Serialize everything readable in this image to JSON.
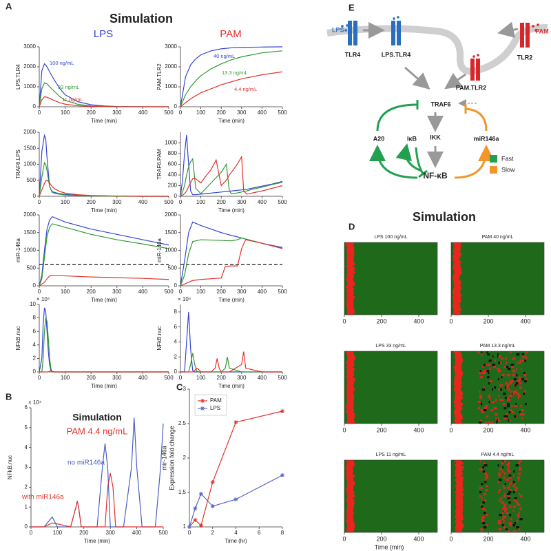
{
  "panel_labels": [
    "A",
    "B",
    "C",
    "D",
    "E"
  ],
  "panel_a": {
    "title": "Simulation",
    "columns": [
      "LPS",
      "PAM"
    ]
  },
  "chart_data": [
    {
      "type": "line",
      "ylabel": "LPS.TLR4",
      "xlabel": "Time (min)",
      "xlim": [
        0,
        500
      ],
      "xticks": [
        0,
        100,
        200,
        300,
        400,
        500
      ],
      "ylim": [
        0,
        3000
      ],
      "yticks": [
        0,
        1000,
        2000,
        3000
      ],
      "x": [
        0,
        10,
        20,
        30,
        40,
        60,
        80,
        100,
        150,
        200,
        250,
        300,
        400,
        500
      ],
      "series": [
        {
          "name": "100 ng/mL",
          "color": "#3344d6",
          "values": [
            0,
            1800,
            2150,
            2000,
            1750,
            1300,
            900,
            600,
            250,
            100,
            40,
            15,
            0,
            0
          ]
        },
        {
          "name": "33 ng/mL",
          "color": "#2f9a2f",
          "values": [
            0,
            900,
            1200,
            1150,
            1000,
            750,
            500,
            320,
            120,
            40,
            15,
            5,
            0,
            0
          ]
        },
        {
          "name": "11 ng/mL",
          "color": "#e2312b",
          "values": [
            0,
            350,
            500,
            480,
            420,
            300,
            200,
            130,
            50,
            20,
            5,
            0,
            0,
            0
          ]
        }
      ]
    },
    {
      "type": "line",
      "ylabel": "PAM.TLR2",
      "xlabel": "Time (min)",
      "xlim": [
        0,
        500
      ],
      "xticks": [
        0,
        100,
        200,
        300,
        400,
        500
      ],
      "ylim": [
        0,
        3000
      ],
      "yticks": [
        0,
        1000,
        2000,
        3000
      ],
      "x": [
        0,
        25,
        50,
        75,
        100,
        150,
        200,
        250,
        300,
        400,
        500
      ],
      "series": [
        {
          "name": "40 ng/mL",
          "color": "#3344d6",
          "values": [
            0,
            1500,
            2100,
            2400,
            2600,
            2800,
            2900,
            2950,
            2970,
            2990,
            3000
          ]
        },
        {
          "name": "13.3 ng/mL",
          "color": "#2f9a2f",
          "values": [
            0,
            600,
            1000,
            1300,
            1550,
            1900,
            2150,
            2350,
            2500,
            2700,
            2800
          ]
        },
        {
          "name": "4.4 ng/mL",
          "color": "#e2312b",
          "values": [
            0,
            200,
            400,
            550,
            700,
            900,
            1100,
            1250,
            1400,
            1600,
            1750
          ]
        }
      ]
    },
    {
      "type": "line",
      "ylabel": "TRAF6.LPS",
      "xlabel": "Time (min)",
      "xlim": [
        0,
        500
      ],
      "xticks": [
        0,
        100,
        200,
        300,
        400,
        500
      ],
      "ylim": [
        0,
        2000
      ],
      "yticks": [
        0,
        500,
        1000,
        1500,
        2000
      ],
      "x": [
        0,
        10,
        20,
        25,
        30,
        40,
        50,
        60,
        80,
        100,
        150,
        200,
        300,
        400,
        500
      ],
      "series": [
        {
          "color": "#3344d6",
          "values": [
            0,
            1400,
            1900,
            1800,
            1200,
            300,
            150,
            120,
            80,
            60,
            30,
            15,
            5,
            0,
            0
          ]
        },
        {
          "color": "#2f9a2f",
          "values": [
            0,
            600,
            1050,
            1000,
            800,
            300,
            120,
            90,
            60,
            40,
            20,
            10,
            0,
            0,
            0
          ]
        },
        {
          "color": "#e2312b",
          "values": [
            0,
            200,
            400,
            480,
            500,
            420,
            300,
            230,
            150,
            100,
            50,
            25,
            10,
            0,
            0
          ]
        }
      ]
    },
    {
      "type": "line",
      "ylabel": "TRAF6.PAM",
      "xlabel": "Time (min)",
      "xlim": [
        0,
        500
      ],
      "xticks": [
        0,
        100,
        200,
        300,
        400,
        500
      ],
      "ylim": [
        0,
        1200
      ],
      "yticks": [
        0,
        200,
        400,
        600,
        800,
        1000
      ],
      "x": [
        0,
        10,
        20,
        30,
        40,
        50,
        60,
        75,
        100,
        125,
        150,
        175,
        200,
        225,
        240,
        250,
        275,
        300,
        310,
        325,
        350,
        400,
        450,
        500
      ],
      "series": [
        {
          "color": "#3344d6",
          "values": [
            0,
            300,
            800,
            1150,
            600,
            100,
            30,
            30,
            40,
            50,
            60,
            70,
            80,
            90,
            95,
            100,
            110,
            120,
            125,
            130,
            150,
            190,
            230,
            280
          ]
        },
        {
          "color": "#2f9a2f",
          "values": [
            0,
            80,
            200,
            400,
            550,
            650,
            700,
            150,
            50,
            150,
            250,
            350,
            450,
            600,
            100,
            50,
            60,
            80,
            90,
            100,
            130,
            170,
            220,
            260
          ]
        },
        {
          "color": "#e2312b",
          "values": [
            0,
            20,
            50,
            100,
            180,
            260,
            330,
            330,
            250,
            380,
            500,
            680,
            200,
            300,
            400,
            450,
            580,
            740,
            100,
            40,
            60,
            100,
            150,
            200
          ]
        }
      ]
    },
    {
      "type": "line",
      "ylabel": "miR-146a",
      "xlabel": "Time (min)",
      "xlim": [
        0,
        500
      ],
      "xticks": [
        0,
        100,
        200,
        300,
        400,
        500
      ],
      "ylim": [
        0,
        2000
      ],
      "yticks": [
        0,
        500,
        1000,
        1500,
        2000
      ],
      "threshold": 600,
      "x": [
        0,
        10,
        20,
        30,
        40,
        50,
        100,
        200,
        300,
        400,
        500
      ],
      "series": [
        {
          "color": "#3344d6",
          "values": [
            0,
            300,
            1000,
            1600,
            1850,
            1950,
            1800,
            1600,
            1450,
            1300,
            1150
          ]
        },
        {
          "color": "#2f9a2f",
          "values": [
            0,
            200,
            800,
            1400,
            1650,
            1750,
            1650,
            1450,
            1300,
            1180,
            1050
          ]
        },
        {
          "color": "#e2312b",
          "values": [
            0,
            50,
            100,
            200,
            280,
            300,
            280,
            250,
            230,
            210,
            180
          ]
        }
      ]
    },
    {
      "type": "line",
      "ylabel": "miR-146a",
      "xlabel": "Time (min)",
      "xlim": [
        0,
        500
      ],
      "xticks": [
        0,
        100,
        200,
        300,
        400,
        500
      ],
      "ylim": [
        0,
        2000
      ],
      "yticks": [
        0,
        500,
        1000,
        1500,
        2000
      ],
      "threshold": 600,
      "x": [
        0,
        20,
        40,
        60,
        100,
        150,
        200,
        220,
        250,
        280,
        300,
        320,
        400,
        500
      ],
      "series": [
        {
          "color": "#3344d6",
          "values": [
            0,
            700,
            1500,
            1800,
            1700,
            1600,
            1500,
            1470,
            1420,
            1380,
            1350,
            1320,
            1200,
            1080
          ]
        },
        {
          "color": "#2f9a2f",
          "values": [
            0,
            300,
            900,
            1250,
            1300,
            1290,
            1280,
            1275,
            1270,
            1300,
            1350,
            1320,
            1200,
            1060
          ]
        },
        {
          "color": "#e2312b",
          "values": [
            0,
            50,
            100,
            150,
            180,
            200,
            220,
            550,
            560,
            560,
            1050,
            1300,
            1200,
            1050
          ]
        }
      ]
    },
    {
      "type": "line",
      "ylabel": "NFkB.nuc",
      "xlabel": "Time (min)",
      "multiplier": "× 10⁴",
      "xlim": [
        0,
        500
      ],
      "xticks": [
        0,
        100,
        200,
        300,
        400,
        500
      ],
      "ylim": [
        0,
        100000
      ],
      "yticks": [
        0,
        {
          "value": 20000,
          "label": "2"
        },
        {
          "value": 40000,
          "label": "4"
        },
        {
          "value": 60000,
          "label": "6"
        },
        {
          "value": 80000,
          "label": "8"
        },
        {
          "value": 100000,
          "label": "10"
        }
      ],
      "x": [
        0,
        10,
        15,
        20,
        25,
        30,
        35,
        40,
        45,
        50,
        60,
        100,
        500
      ],
      "series": [
        {
          "color": "#3344d6",
          "values": [
            0,
            20000,
            70000,
            95000,
            90000,
            60000,
            30000,
            10000,
            2000,
            0,
            0,
            0,
            0
          ]
        },
        {
          "color": "#2f9a2f",
          "values": [
            0,
            0,
            20000,
            60000,
            80000,
            75000,
            50000,
            20000,
            5000,
            0,
            0,
            0,
            0
          ]
        },
        {
          "color": "#e2312b",
          "values": [
            0,
            0,
            0,
            0,
            0,
            0,
            0,
            1000,
            2000,
            1000,
            0,
            0,
            0
          ]
        }
      ]
    },
    {
      "type": "line",
      "ylabel": "NFkB.nuc",
      "xlabel": "Time (min)",
      "multiplier": "× 10⁴",
      "xlim": [
        0,
        500
      ],
      "xticks": [
        0,
        100,
        200,
        300,
        400,
        500
      ],
      "ylim": [
        0,
        90000
      ],
      "yticks": [
        0,
        {
          "value": 20000,
          "label": "2"
        },
        {
          "value": 40000,
          "label": "4"
        },
        {
          "value": 60000,
          "label": "6"
        },
        {
          "value": 80000,
          "label": "8"
        }
      ],
      "x": [
        0,
        20,
        30,
        40,
        50,
        60,
        70,
        80,
        90,
        100,
        150,
        170,
        180,
        190,
        200,
        220,
        230,
        240,
        300,
        310,
        320,
        400,
        500
      ],
      "series": [
        {
          "color": "#3344d6",
          "values": [
            0,
            0,
            40000,
            80000,
            30000,
            2000,
            0,
            0,
            0,
            0,
            0,
            0,
            0,
            0,
            0,
            0,
            0,
            0,
            0,
            0,
            0,
            0,
            0
          ]
        },
        {
          "color": "#2f9a2f",
          "values": [
            0,
            0,
            0,
            0,
            10000,
            25000,
            10000,
            1000,
            0,
            0,
            0,
            0,
            0,
            0,
            0,
            5000,
            20000,
            5000,
            0,
            0,
            0,
            0,
            0
          ]
        },
        {
          "color": "#e2312b",
          "values": [
            0,
            0,
            0,
            0,
            0,
            0,
            2000,
            5000,
            3000,
            0,
            0,
            5000,
            18000,
            5000,
            0,
            0,
            0,
            0,
            10000,
            27000,
            5000,
            0,
            0
          ]
        }
      ]
    },
    {
      "type": "line",
      "title": "Simulation",
      "subtitle": "PAM 4.4 ng/mL",
      "ylabel": "NFkB.nuc",
      "xlabel": "Time (min)",
      "multiplier": "× 10⁴",
      "xlim": [
        0,
        500
      ],
      "xticks": [
        0,
        100,
        200,
        300,
        400,
        500
      ],
      "ylim": [
        0,
        60000
      ],
      "yticks": [
        0,
        {
          "value": 10000,
          "label": "1"
        },
        {
          "value": 20000,
          "label": "2"
        },
        {
          "value": 30000,
          "label": "3"
        },
        {
          "value": 40000,
          "label": "4"
        },
        {
          "value": 50000,
          "label": "5"
        },
        {
          "value": 60000,
          "label": "6"
        }
      ],
      "x": [
        0,
        50,
        80,
        100,
        150,
        170,
        175,
        180,
        190,
        200,
        250,
        270,
        280,
        290,
        300,
        310,
        320,
        350,
        380,
        390,
        400,
        420,
        470,
        490,
        500
      ],
      "series": [
        {
          "name": "no miR146a",
          "color": "#4a5cc4",
          "values": [
            0,
            0,
            5000,
            0,
            0,
            10000,
            13000,
            10000,
            0,
            0,
            0,
            30000,
            42000,
            30000,
            0,
            0,
            0,
            0,
            30000,
            55000,
            30000,
            0,
            0,
            30000,
            52000
          ]
        },
        {
          "name": "with miR146a",
          "color": "#e2312b",
          "values": [
            0,
            0,
            2000,
            1500,
            0,
            10000,
            13000,
            10000,
            0,
            0,
            0,
            0,
            0,
            20000,
            27000,
            20000,
            0,
            0,
            0,
            0,
            0,
            0,
            0,
            0,
            0
          ]
        }
      ]
    },
    {
      "type": "line",
      "markers": true,
      "legend": "upper left",
      "ylabel": [
        "mir-146a",
        "Expression fold change"
      ],
      "xlabel": "Time (hr)",
      "xlim": [
        0,
        8
      ],
      "xticks": [
        0,
        2,
        4,
        6,
        8
      ],
      "ylim": [
        1,
        3
      ],
      "yticks": [
        1,
        1.5,
        2,
        2.5,
        3
      ],
      "x": [
        0,
        0.5,
        1,
        2,
        4,
        8
      ],
      "series": [
        {
          "name": "PAM",
          "color": "#e2312b",
          "values": [
            1,
            1.1,
            1.02,
            1.65,
            2.52,
            2.68
          ]
        },
        {
          "name": "LPS",
          "color": "#5566c8",
          "values": [
            1,
            1.27,
            1.48,
            1.3,
            1.4,
            1.75
          ]
        }
      ]
    }
  ],
  "heatmaps": {
    "title": "Simulation",
    "xlabel": "Time (min)",
    "xlim": [
      0,
      500
    ],
    "xticks": [
      0,
      200,
      400
    ],
    "panels": [
      "LPS 100 ng/mL",
      "PAM 40 ng/mL",
      "LPS 33 ng/mL",
      "PAM 13.3 ng/mL",
      "LPS 11 ng/mL",
      "PAM 4.4 ng/mL"
    ]
  },
  "diagram": {
    "nodes": [
      "LPS",
      "PAM",
      "TLR4",
      "LPS.TLR4",
      "PAM.TLR2",
      "TLR2",
      "TRAF6",
      "IKK",
      "A20",
      "IκB",
      "NF-κB",
      "miR146a"
    ],
    "legend": [
      "Fast",
      "Slow"
    ]
  }
}
